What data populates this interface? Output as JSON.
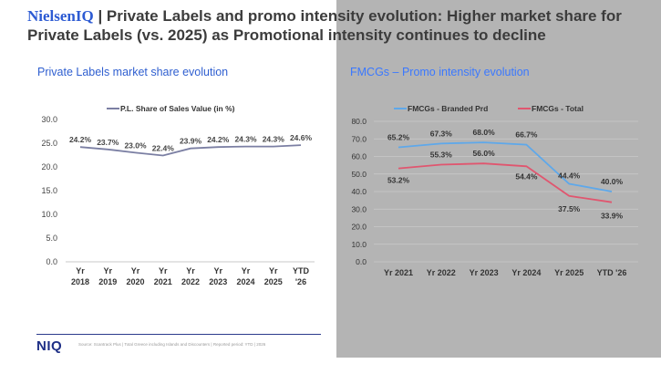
{
  "header": {
    "brand": "NielsenIQ",
    "title_rest": " | Private Labels and promo intensity evolution: Higher market share for Private Labels (vs. 2025) as Promotional intensity continues to decline"
  },
  "colors": {
    "brand": "#2d5bd3",
    "left_series": "#7b7fa3",
    "branded": "#5ea8ea",
    "total": "#e0566f",
    "panel_gray": "#b4b4b4"
  },
  "chart_data": [
    {
      "type": "line",
      "title": "Private Labels market share evolution",
      "categories": [
        [
          "Yr",
          "2018"
        ],
        [
          "Yr",
          "2019"
        ],
        [
          "Yr",
          "2020"
        ],
        [
          "Yr",
          "2021"
        ],
        [
          "Yr",
          "2022"
        ],
        [
          "Yr",
          "2023"
        ],
        [
          "Yr",
          "2024"
        ],
        [
          "Yr",
          "2025"
        ],
        [
          "YTD",
          "'26"
        ]
      ],
      "series": [
        {
          "name": "P.L. Share of Sales Value (in %)",
          "values": [
            24.2,
            23.7,
            23.0,
            22.4,
            23.9,
            24.2,
            24.3,
            24.3,
            24.6
          ],
          "labels": [
            "24.2%",
            "23.7%",
            "23.0%",
            "22.4%",
            "23.9%",
            "24.2%",
            "24.3%",
            "24.3%",
            "24.6%"
          ]
        }
      ],
      "ylim": [
        0,
        30
      ],
      "yticks": [
        "0.0",
        "5.0",
        "10.0",
        "15.0",
        "20.0",
        "25.0",
        "30.0"
      ],
      "legend": "top",
      "grid": false
    },
    {
      "type": "line",
      "title": "FMCGs – Promo intensity evolution",
      "categories": [
        [
          "Yr 2021"
        ],
        [
          "Yr 2022"
        ],
        [
          "Yr 2023"
        ],
        [
          "Yr 2024"
        ],
        [
          "Yr 2025"
        ],
        [
          "YTD '26"
        ]
      ],
      "series": [
        {
          "name": "FMCGs - Branded Prd",
          "values": [
            65.2,
            67.3,
            68.0,
            66.7,
            44.4,
            40.0
          ],
          "labels": [
            "65.2%",
            "67.3%",
            "68.0%",
            "66.7%",
            "44.4%",
            "40.0%"
          ]
        },
        {
          "name": "FMCGs - Total",
          "values": [
            53.2,
            55.3,
            56.0,
            54.4,
            37.5,
            33.9
          ],
          "labels": [
            "53.2%",
            "55.3%",
            "56.0%",
            "54.4%",
            "37.5%",
            "33.9%"
          ]
        }
      ],
      "ylim": [
        0,
        80
      ],
      "yticks": [
        "0.0",
        "10.0",
        "20.0",
        "30.0",
        "40.0",
        "50.0",
        "60.0",
        "70.0",
        "80.0"
      ],
      "legend": "top",
      "grid": true
    }
  ],
  "footer": {
    "logo": "NIQ",
    "source": "Source: Scantrack Plus | Total Greece including Islands and Discounters | Reported period: YTD | 2026"
  }
}
